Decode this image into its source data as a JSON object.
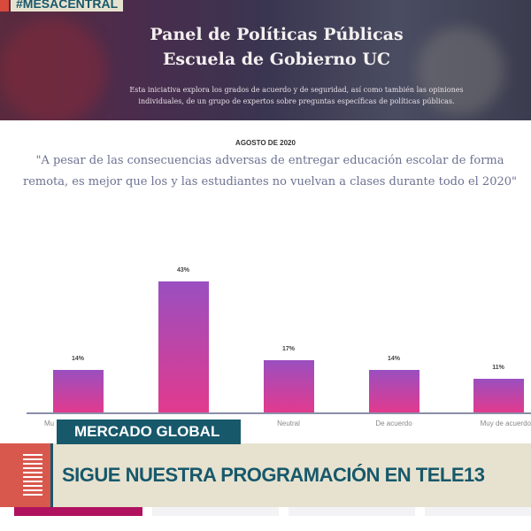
{
  "hashtag": "#MESACENTRAL",
  "header": {
    "title_line1": "Panel de Políticas Públicas",
    "title_line2": "Escuela de Gobierno UC",
    "intro": "Esta iniciativa explora los grados de acuerdo y de seguridad, así como también las opiniones individuales, de un grupo de expertos sobre preguntas específicas de políticas públicas."
  },
  "survey": {
    "date": "AGOSTO DE 2020",
    "question": "\"A pesar de las consecuencias adversas de entregar educación escolar de forma remota, es mejor que los y las estudiantes no vuelvan a clases durante todo el 2020\""
  },
  "chart_data": {
    "type": "bar",
    "categories": [
      "Mu",
      "",
      "Neutral",
      "De acuerdo",
      "Muy de acuerdo"
    ],
    "values": [
      14,
      43,
      17,
      14,
      11
    ],
    "labels": [
      "14%",
      "43%",
      "17%",
      "14%",
      "11%"
    ],
    "ylim": [
      0,
      45
    ],
    "colors": [
      "#9a4fc0",
      "#e23a8e"
    ]
  },
  "overlay": {
    "program": "MERCADO GLOBAL",
    "ticker": "SIGUE NUESTRA PROGRAMACIÓN EN TELE13"
  }
}
